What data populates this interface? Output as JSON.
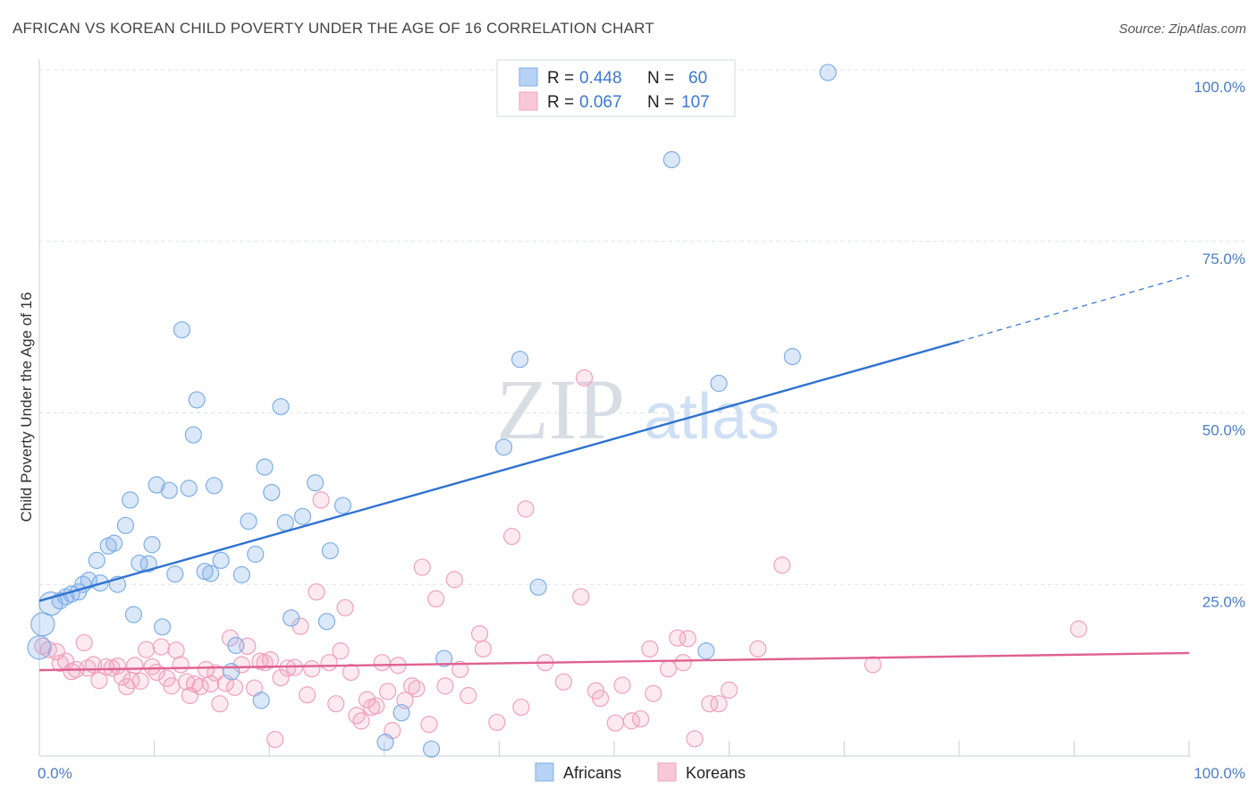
{
  "title": "AFRICAN VS KOREAN CHILD POVERTY UNDER THE AGE OF 16 CORRELATION CHART",
  "source": "Source: ZipAtlas.com",
  "watermark": {
    "zip": "ZIP",
    "atlas": "atlas"
  },
  "colors": {
    "africans": "#7eaee8",
    "koreans": "#f0a0bc",
    "africans_line": "#2f72d0",
    "koreans_line": "#e06090",
    "tick": "#4a7cc9",
    "grid": "#dde1e6"
  },
  "legend": {
    "r_label": "R = ",
    "n_label": "N = ",
    "rows": [
      {
        "r": "0.448",
        "n": "60"
      },
      {
        "r": "0.067",
        "n": "107"
      }
    ]
  },
  "chart_data": {
    "type": "scatter",
    "title": "AFRICAN VS KOREAN CHILD POVERTY UNDER THE AGE OF 16 CORRELATION CHART",
    "xlabel": "",
    "ylabel": "Child Poverty Under the Age of 16",
    "xlim": [
      0,
      100
    ],
    "ylim": [
      0,
      100
    ],
    "x_tick_labels": [
      "0.0%",
      "100.0%"
    ],
    "y_tick_labels": [
      "100.0%",
      "75.0%",
      "50.0%",
      "25.0%"
    ],
    "y_ticks": [
      100,
      75,
      50,
      25
    ],
    "grid": true,
    "legend_position": "top-center",
    "series": [
      {
        "name": "Africans",
        "R": 0.448,
        "N": 60,
        "trend": {
          "x0": 0,
          "y0": 22.6,
          "x1": 80,
          "y1": 60.4,
          "dashed_to": 100,
          "dashed_y": 70.0
        },
        "points": [
          [
            0,
            15.8
          ],
          [
            0.3,
            19.2
          ],
          [
            1.0,
            22.2
          ],
          [
            1.8,
            22.6
          ],
          [
            2.3,
            23.2
          ],
          [
            2.8,
            23.6
          ],
          [
            3.4,
            23.9
          ],
          [
            3.8,
            25.0
          ],
          [
            4.3,
            25.6
          ],
          [
            5.0,
            28.5
          ],
          [
            5.3,
            25.2
          ],
          [
            6.0,
            30.6
          ],
          [
            6.5,
            31.0
          ],
          [
            6.8,
            25.0
          ],
          [
            7.5,
            33.6
          ],
          [
            7.9,
            37.3
          ],
          [
            8.2,
            20.6
          ],
          [
            8.7,
            28.1
          ],
          [
            9.5,
            28.0
          ],
          [
            9.8,
            30.8
          ],
          [
            10.2,
            39.5
          ],
          [
            10.7,
            18.8
          ],
          [
            11.3,
            38.7
          ],
          [
            11.8,
            26.5
          ],
          [
            12.4,
            62.1
          ],
          [
            13.0,
            39.0
          ],
          [
            13.4,
            46.8
          ],
          [
            13.7,
            51.9
          ],
          [
            14.4,
            26.9
          ],
          [
            14.9,
            26.6
          ],
          [
            15.2,
            39.4
          ],
          [
            15.8,
            28.5
          ],
          [
            16.7,
            12.3
          ],
          [
            17.1,
            16.1
          ],
          [
            17.6,
            26.4
          ],
          [
            18.2,
            34.2
          ],
          [
            18.8,
            29.4
          ],
          [
            19.3,
            8.1
          ],
          [
            19.6,
            42.1
          ],
          [
            20.2,
            38.4
          ],
          [
            21.0,
            50.9
          ],
          [
            21.4,
            34.0
          ],
          [
            21.9,
            20.1
          ],
          [
            22.9,
            34.9
          ],
          [
            24.0,
            39.8
          ],
          [
            25.0,
            19.6
          ],
          [
            25.3,
            29.9
          ],
          [
            26.4,
            36.5
          ],
          [
            30.1,
            2.0
          ],
          [
            31.5,
            6.3
          ],
          [
            34.1,
            1.0
          ],
          [
            35.2,
            14.2
          ],
          [
            40.4,
            45.0
          ],
          [
            41.8,
            57.8
          ],
          [
            43.4,
            24.6
          ],
          [
            55.0,
            86.9
          ],
          [
            58.0,
            15.3
          ],
          [
            59.1,
            54.3
          ],
          [
            65.5,
            58.2
          ],
          [
            68.6,
            99.6
          ]
        ]
      },
      {
        "name": "Koreans",
        "R": 0.067,
        "N": 107,
        "trend": {
          "x0": 0,
          "y0": 12.5,
          "x1": 100,
          "y1": 15.0
        },
        "points": [
          [
            0.3,
            16.0
          ],
          [
            0.8,
            15.5
          ],
          [
            1.5,
            15.2
          ],
          [
            1.8,
            13.5
          ],
          [
            2.3,
            13.8
          ],
          [
            2.8,
            12.3
          ],
          [
            3.2,
            12.6
          ],
          [
            3.9,
            16.5
          ],
          [
            4.2,
            12.8
          ],
          [
            4.7,
            13.3
          ],
          [
            5.2,
            11.0
          ],
          [
            5.8,
            13.0
          ],
          [
            6.3,
            12.8
          ],
          [
            6.8,
            13.1
          ],
          [
            7.2,
            11.5
          ],
          [
            7.6,
            10.1
          ],
          [
            8.0,
            11.0
          ],
          [
            8.3,
            13.2
          ],
          [
            8.8,
            10.9
          ],
          [
            9.3,
            15.5
          ],
          [
            9.8,
            13.0
          ],
          [
            10.2,
            12.2
          ],
          [
            10.6,
            15.9
          ],
          [
            11.1,
            11.3
          ],
          [
            11.5,
            10.2
          ],
          [
            11.9,
            15.4
          ],
          [
            12.3,
            13.3
          ],
          [
            12.8,
            10.8
          ],
          [
            13.1,
            8.8
          ],
          [
            13.5,
            10.5
          ],
          [
            14.0,
            10.1
          ],
          [
            14.5,
            12.6
          ],
          [
            14.9,
            10.5
          ],
          [
            15.3,
            12.1
          ],
          [
            15.7,
            7.6
          ],
          [
            16.2,
            10.6
          ],
          [
            16.6,
            17.2
          ],
          [
            17.0,
            10.0
          ],
          [
            17.6,
            13.3
          ],
          [
            18.1,
            16.0
          ],
          [
            18.7,
            9.9
          ],
          [
            19.2,
            13.8
          ],
          [
            19.6,
            13.6
          ],
          [
            20.1,
            14.0
          ],
          [
            20.5,
            2.4
          ],
          [
            21.0,
            11.4
          ],
          [
            21.6,
            12.8
          ],
          [
            22.2,
            12.9
          ],
          [
            22.7,
            18.9
          ],
          [
            23.3,
            8.9
          ],
          [
            23.7,
            12.7
          ],
          [
            24.1,
            23.9
          ],
          [
            24.5,
            37.3
          ],
          [
            25.2,
            13.6
          ],
          [
            25.8,
            7.6
          ],
          [
            26.2,
            15.3
          ],
          [
            26.6,
            21.6
          ],
          [
            27.1,
            12.2
          ],
          [
            27.6,
            5.9
          ],
          [
            28.0,
            5.1
          ],
          [
            28.5,
            8.2
          ],
          [
            28.9,
            7.1
          ],
          [
            29.3,
            7.3
          ],
          [
            29.8,
            13.6
          ],
          [
            30.3,
            9.4
          ],
          [
            30.7,
            3.7
          ],
          [
            31.2,
            13.2
          ],
          [
            31.8,
            8.1
          ],
          [
            32.4,
            10.2
          ],
          [
            32.8,
            9.8
          ],
          [
            33.3,
            27.5
          ],
          [
            33.9,
            4.6
          ],
          [
            34.5,
            22.9
          ],
          [
            35.3,
            10.2
          ],
          [
            36.1,
            25.7
          ],
          [
            36.6,
            12.6
          ],
          [
            37.3,
            8.8
          ],
          [
            38.3,
            17.8
          ],
          [
            38.6,
            15.6
          ],
          [
            39.8,
            4.9
          ],
          [
            41.1,
            32.0
          ],
          [
            41.9,
            7.1
          ],
          [
            42.3,
            36.0
          ],
          [
            44.0,
            13.6
          ],
          [
            45.6,
            10.8
          ],
          [
            47.1,
            23.2
          ],
          [
            47.4,
            55.1
          ],
          [
            48.4,
            9.5
          ],
          [
            48.8,
            8.4
          ],
          [
            50.1,
            4.8
          ],
          [
            50.7,
            10.3
          ],
          [
            51.5,
            5.1
          ],
          [
            52.3,
            5.4
          ],
          [
            53.1,
            15.6
          ],
          [
            53.4,
            9.1
          ],
          [
            54.7,
            12.7
          ],
          [
            55.5,
            17.2
          ],
          [
            56.0,
            13.6
          ],
          [
            56.4,
            17.1
          ],
          [
            57.0,
            2.5
          ],
          [
            58.3,
            7.6
          ],
          [
            59.1,
            7.6
          ],
          [
            60.0,
            9.6
          ],
          [
            62.5,
            15.6
          ],
          [
            64.6,
            27.8
          ],
          [
            72.5,
            13.3
          ],
          [
            90.4,
            18.5
          ]
        ]
      }
    ]
  },
  "bottom_legend": [
    {
      "label": "Africans"
    },
    {
      "label": "Koreans"
    }
  ]
}
